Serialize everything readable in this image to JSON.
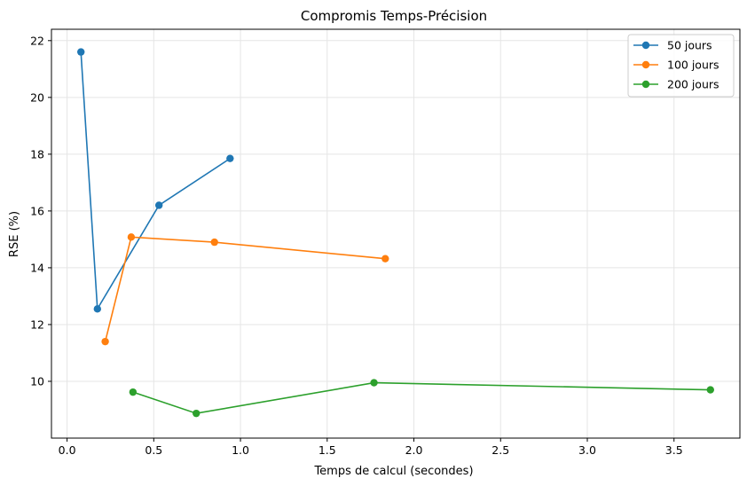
{
  "chart_data": {
    "type": "line",
    "title": "Compromis Temps-Précision",
    "xlabel": "Temps de calcul (secondes)",
    "ylabel": "RSE (%)",
    "xlim": [
      -0.09,
      3.88
    ],
    "ylim": [
      8.0,
      22.4
    ],
    "xticks": [
      0.0,
      0.5,
      1.0,
      1.5,
      2.0,
      2.5,
      3.0,
      3.5
    ],
    "xtick_labels": [
      "0.0",
      "0.5",
      "1.0",
      "1.5",
      "2.0",
      "2.5",
      "3.0",
      "3.5"
    ],
    "yticks": [
      10,
      12,
      14,
      16,
      18,
      20,
      22
    ],
    "ytick_labels": [
      "10",
      "12",
      "14",
      "16",
      "18",
      "20",
      "22"
    ],
    "grid": true,
    "legend_position": "top-right",
    "series": [
      {
        "name": "50 jours",
        "color": "#1f77b4",
        "x": [
          0.08,
          0.175,
          0.53,
          0.94
        ],
        "y": [
          21.6,
          12.55,
          16.2,
          17.85
        ]
      },
      {
        "name": "100 jours",
        "color": "#ff7f0e",
        "x": [
          0.22,
          0.37,
          0.85,
          1.835
        ],
        "y": [
          11.4,
          15.08,
          14.9,
          14.32
        ]
      },
      {
        "name": "200 jours",
        "color": "#2ca02c",
        "x": [
          0.38,
          0.745,
          1.77,
          3.71
        ],
        "y": [
          9.62,
          8.87,
          9.95,
          9.7
        ]
      }
    ]
  }
}
